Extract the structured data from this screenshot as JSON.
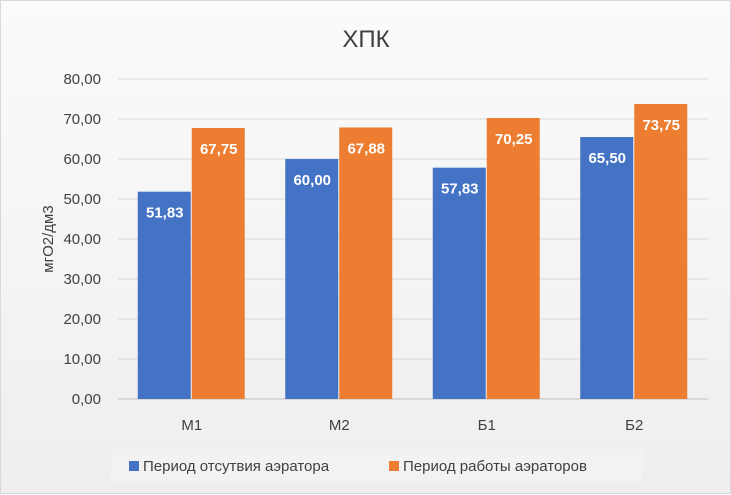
{
  "chart_data": {
    "type": "bar",
    "title": "ХПК",
    "xlabel": "",
    "ylabel": "мгО2/дм3",
    "categories": [
      "М1",
      "М2",
      "Б1",
      "Б2"
    ],
    "ylim": [
      0,
      80
    ],
    "yticks": [
      "0,00",
      "10,00",
      "20,00",
      "30,00",
      "40,00",
      "50,00",
      "60,00",
      "70,00",
      "80,00"
    ],
    "series": [
      {
        "name": "Период отсутвия аэратора",
        "color": "#4472c4",
        "values": [
          51.83,
          60.0,
          57.83,
          65.5
        ],
        "labels": [
          "51,83",
          "60,00",
          "57,83",
          "65,50"
        ]
      },
      {
        "name": "Период работы аэраторов",
        "color": "#ed7d31",
        "values": [
          67.75,
          67.88,
          70.25,
          73.75
        ],
        "labels": [
          "67,75",
          "67,88",
          "70,25",
          "73,75"
        ]
      }
    ],
    "grid": true,
    "legend_position": "bottom"
  }
}
